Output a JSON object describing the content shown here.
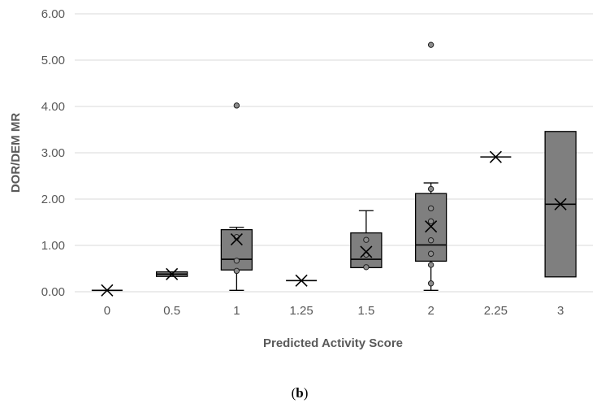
{
  "chart_data": {
    "type": "box",
    "title": "",
    "xlabel": "Predicted Activity Score",
    "ylabel": "DOR/DEM MR",
    "ylim": [
      0,
      6
    ],
    "yticks": [
      0,
      1,
      2,
      3,
      4,
      5,
      6
    ],
    "ytick_labels": [
      "0.00",
      "1.00",
      "2.00",
      "3.00",
      "4.00",
      "5.00",
      "6.00"
    ],
    "grid": true,
    "categories": [
      "0",
      "0.5",
      "1",
      "1.25",
      "1.5",
      "2",
      "2.25",
      "3"
    ],
    "boxes": [
      {
        "min": 0.03,
        "q1": 0.03,
        "median": 0.03,
        "q3": 0.03,
        "max": 0.03,
        "mean": 0.03,
        "points": [],
        "outliers": []
      },
      {
        "min": 0.33,
        "q1": 0.33,
        "median": 0.38,
        "q3": 0.43,
        "max": 0.43,
        "mean": 0.38,
        "points": [],
        "outliers": []
      },
      {
        "min": 0.03,
        "q1": 0.47,
        "median": 0.7,
        "q3": 1.34,
        "max": 1.39,
        "mean": 1.13,
        "points": [
          0.45,
          0.67,
          1.18
        ],
        "outliers": [
          4.02
        ]
      },
      {
        "min": 0.24,
        "q1": 0.24,
        "median": 0.24,
        "q3": 0.24,
        "max": 0.24,
        "mean": 0.24,
        "points": [],
        "outliers": []
      },
      {
        "min": 0.52,
        "q1": 0.52,
        "median": 0.7,
        "q3": 1.27,
        "max": 1.75,
        "mean": 0.86,
        "points": [
          0.53,
          0.8,
          1.12
        ],
        "outliers": []
      },
      {
        "min": 0.03,
        "q1": 0.66,
        "median": 1.01,
        "q3": 2.12,
        "max": 2.35,
        "mean": 1.41,
        "points": [
          0.18,
          0.58,
          0.82,
          1.11,
          1.52,
          1.8,
          2.22
        ],
        "outliers": [
          5.33
        ]
      },
      {
        "min": 2.91,
        "q1": 2.91,
        "median": 2.91,
        "q3": 2.91,
        "max": 2.91,
        "mean": 2.91,
        "points": [],
        "outliers": []
      },
      {
        "min": 0.32,
        "q1": 0.32,
        "median": 1.89,
        "q3": 3.46,
        "max": 3.46,
        "mean": 1.89,
        "points": [],
        "outliers": []
      }
    ],
    "panel_label": "b",
    "colors": {
      "box_fill": "#7f7f7f",
      "stroke": "#000000",
      "grid": "#d9d9d9",
      "text": "#595959"
    }
  }
}
